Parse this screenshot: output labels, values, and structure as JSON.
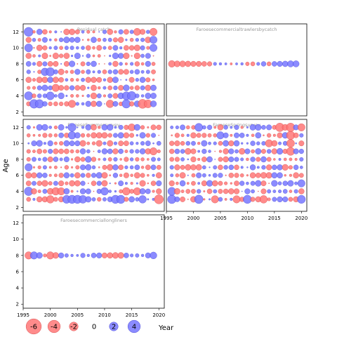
{
  "chart_data": {
    "type": "scatter",
    "subtype": "bubble-residuals",
    "xlabel": "Year",
    "ylabel": "Age",
    "xlim": [
      1995,
      2021
    ],
    "ylim": [
      1.5,
      13
    ],
    "x_ticks": [
      1995,
      2000,
      2005,
      2010,
      2015,
      2020
    ],
    "y_ticks": [
      2,
      4,
      6,
      8,
      10,
      12
    ],
    "colors": {
      "positive": "#7777ff",
      "negative": "#ff7777",
      "positive_edge": "#3333cc",
      "negative_edge": "#cc3333"
    },
    "legend": {
      "placement": "bottom",
      "entries": [
        {
          "label": "-6",
          "value": -6
        },
        {
          "label": "-4",
          "value": -4
        },
        {
          "label": "-2",
          "value": -2
        },
        {
          "label": "0",
          "value": 0
        },
        {
          "label": "2",
          "value": 2
        },
        {
          "label": "4",
          "value": 4
        }
      ]
    },
    "panels": [
      {
        "title": "Residual catch",
        "grid": "top-left",
        "years": [
          1996,
          2019
        ],
        "ages": [
          3,
          12
        ],
        "seed": 11,
        "points": [
          {
            "x": 1996,
            "y": 12,
            "v": 4.5
          },
          {
            "x": 1996,
            "y": 10,
            "v": 3.5
          },
          {
            "x": 1996,
            "y": 4,
            "v": 3.8
          },
          {
            "x": 1997,
            "y": 3,
            "v": 4.2
          },
          {
            "x": 1998,
            "y": 3,
            "v": 4.0
          },
          {
            "x": 1999,
            "y": 7,
            "v": 3.2
          },
          {
            "x": 2000,
            "y": 7,
            "v": 4.0
          },
          {
            "x": 2000,
            "y": 4,
            "v": 3.5
          },
          {
            "x": 2001,
            "y": 5,
            "v": -3.0
          },
          {
            "x": 2004,
            "y": 3,
            "v": -3.0
          },
          {
            "x": 2011,
            "y": 3,
            "v": -3.2
          },
          {
            "x": 2014,
            "y": 4,
            "v": 3.6
          },
          {
            "x": 2014,
            "y": 3,
            "v": 4.0
          },
          {
            "x": 2015,
            "y": 4,
            "v": 4.2
          },
          {
            "x": 2017,
            "y": 3,
            "v": -4.5
          },
          {
            "x": 2018,
            "y": 3,
            "v": -3.5
          },
          {
            "x": 2019,
            "y": 12,
            "v": -3.0
          },
          {
            "x": 2019,
            "y": 10,
            "v": 3.0
          },
          {
            "x": 2019,
            "y": 11,
            "v": 3.0
          },
          {
            "x": 2016,
            "y": 12,
            "v": -2.8
          }
        ]
      },
      {
        "title": "Faroesecommercialtrawlersbycatch",
        "grid": "top-right",
        "years": [
          1996,
          2019
        ],
        "ages": [
          8,
          8
        ],
        "seed": 23,
        "points": [
          {
            "x": 1996,
            "y": 8,
            "v": -2.5
          },
          {
            "x": 1997,
            "y": 8,
            "v": -2.0
          },
          {
            "x": 1998,
            "y": 8,
            "v": -2.0
          },
          {
            "x": 1999,
            "y": 8,
            "v": -1.8
          },
          {
            "x": 2000,
            "y": 8,
            "v": -1.6
          },
          {
            "x": 2001,
            "y": 8,
            "v": -1.6
          },
          {
            "x": 2002,
            "y": 8,
            "v": -1.4
          },
          {
            "x": 2003,
            "y": 8,
            "v": -1.2
          },
          {
            "x": 2004,
            "y": 8,
            "v": 0.6
          },
          {
            "x": 2005,
            "y": 8,
            "v": 0.4
          },
          {
            "x": 2006,
            "y": 8,
            "v": 0.3
          },
          {
            "x": 2007,
            "y": 8,
            "v": -0.3
          },
          {
            "x": 2008,
            "y": 8,
            "v": 0.3
          },
          {
            "x": 2009,
            "y": 8,
            "v": 0.4
          },
          {
            "x": 2010,
            "y": 8,
            "v": -0.8
          },
          {
            "x": 2011,
            "y": 8,
            "v": -1.0
          },
          {
            "x": 2012,
            "y": 8,
            "v": 0.6
          },
          {
            "x": 2013,
            "y": 8,
            "v": 1.3
          },
          {
            "x": 2014,
            "y": 8,
            "v": -1.0
          },
          {
            "x": 2015,
            "y": 8,
            "v": 1.4
          },
          {
            "x": 2016,
            "y": 8,
            "v": 1.6
          },
          {
            "x": 2017,
            "y": 8,
            "v": 1.8
          },
          {
            "x": 2018,
            "y": 8,
            "v": 2.2
          },
          {
            "x": 2019,
            "y": 8,
            "v": 2.2
          }
        ]
      },
      {
        "title": "FaroeseSummersurvey",
        "grid": "middle-left",
        "years": [
          1996,
          2020
        ],
        "ages": [
          3,
          12
        ],
        "seed": 37,
        "points": [
          {
            "x": 1996,
            "y": 4,
            "v": 4.0
          },
          {
            "x": 1996,
            "y": 7,
            "v": 3.0
          },
          {
            "x": 2000,
            "y": 3,
            "v": -3.2
          },
          {
            "x": 2001,
            "y": 4,
            "v": -3.2
          },
          {
            "x": 2002,
            "y": 4,
            "v": -3.0
          },
          {
            "x": 2003,
            "y": 3,
            "v": 3.5
          },
          {
            "x": 2004,
            "y": 3,
            "v": 3.8
          },
          {
            "x": 2004,
            "y": 12,
            "v": 3.6
          },
          {
            "x": 2004,
            "y": 11,
            "v": 3.2
          },
          {
            "x": 2005,
            "y": 3,
            "v": 3.8
          },
          {
            "x": 2006,
            "y": 3,
            "v": 3.4
          },
          {
            "x": 2010,
            "y": 4,
            "v": 3.2
          },
          {
            "x": 2012,
            "y": 3,
            "v": 3.8
          },
          {
            "x": 2013,
            "y": 3,
            "v": 3.8
          },
          {
            "x": 2014,
            "y": 4,
            "v": -3.2
          },
          {
            "x": 2016,
            "y": 4,
            "v": -3.0
          },
          {
            "x": 2017,
            "y": 3,
            "v": 3.2
          },
          {
            "x": 2020,
            "y": 3,
            "v": -4.5
          },
          {
            "x": 2019,
            "y": 9,
            "v": -3.0
          },
          {
            "x": 2015,
            "y": 12,
            "v": -2.8
          }
        ]
      },
      {
        "title": "FaroeseSpringsurvey",
        "grid": "middle-right",
        "years": [
          1996,
          2020
        ],
        "ages": [
          3,
          12
        ],
        "seed": 53,
        "points": [
          {
            "x": 1996,
            "y": 3,
            "v": 4.0
          },
          {
            "x": 1996,
            "y": 4,
            "v": 3.5
          },
          {
            "x": 2001,
            "y": 3,
            "v": 4.0
          },
          {
            "x": 2001,
            "y": 12,
            "v": 3.5
          },
          {
            "x": 2005,
            "y": 11,
            "v": 3.0
          },
          {
            "x": 2008,
            "y": 3,
            "v": -3.0
          },
          {
            "x": 2010,
            "y": 3,
            "v": 3.8
          },
          {
            "x": 2013,
            "y": 3,
            "v": -3.2
          },
          {
            "x": 2016,
            "y": 12,
            "v": -4.0
          },
          {
            "x": 2018,
            "y": 11,
            "v": -3.8
          },
          {
            "x": 2018,
            "y": 12,
            "v": -4.0
          },
          {
            "x": 2018,
            "y": 9,
            "v": -3.6
          },
          {
            "x": 2018,
            "y": 10,
            "v": -3.4
          },
          {
            "x": 2020,
            "y": 12,
            "v": -3.0
          },
          {
            "x": 2020,
            "y": 3,
            "v": 3.6
          },
          {
            "x": 2020,
            "y": 5,
            "v": 3.0
          },
          {
            "x": 2014,
            "y": 10,
            "v": -3.0
          },
          {
            "x": 2004,
            "y": 3,
            "v": -3.0
          }
        ]
      },
      {
        "title": "Faroesecommerciallongliners",
        "grid": "bottom-left",
        "years": [
          1996,
          2019
        ],
        "ages": [
          8,
          8
        ],
        "seed": 71,
        "points": [
          {
            "x": 1996,
            "y": 8,
            "v": -3.0
          },
          {
            "x": 1997,
            "y": 8,
            "v": 3.0
          },
          {
            "x": 1998,
            "y": 8,
            "v": 2.0
          },
          {
            "x": 1999,
            "y": 8,
            "v": -0.6
          },
          {
            "x": 2000,
            "y": 8,
            "v": -3.0
          },
          {
            "x": 2001,
            "y": 8,
            "v": -2.0
          },
          {
            "x": 2002,
            "y": 8,
            "v": 1.6
          },
          {
            "x": 2003,
            "y": 8,
            "v": 0.8
          },
          {
            "x": 2004,
            "y": 8,
            "v": 0.4
          },
          {
            "x": 2005,
            "y": 8,
            "v": 0.3
          },
          {
            "x": 2006,
            "y": 8,
            "v": 1.2
          },
          {
            "x": 2007,
            "y": 8,
            "v": 0.4
          },
          {
            "x": 2008,
            "y": 8,
            "v": 1.4
          },
          {
            "x": 2009,
            "y": 8,
            "v": 1.6
          },
          {
            "x": 2010,
            "y": 8,
            "v": -1.6
          },
          {
            "x": 2011,
            "y": 8,
            "v": -1.8
          },
          {
            "x": 2012,
            "y": 8,
            "v": -2.0
          },
          {
            "x": 2013,
            "y": 8,
            "v": -2.0
          },
          {
            "x": 2014,
            "y": 8,
            "v": 1.4
          },
          {
            "x": 2015,
            "y": 8,
            "v": 0.6
          },
          {
            "x": 2016,
            "y": 8,
            "v": 0.8
          },
          {
            "x": 2017,
            "y": 8,
            "v": 0.4
          },
          {
            "x": 2018,
            "y": 8,
            "v": 1.6
          },
          {
            "x": 2019,
            "y": 8,
            "v": 2.6
          }
        ]
      }
    ]
  }
}
